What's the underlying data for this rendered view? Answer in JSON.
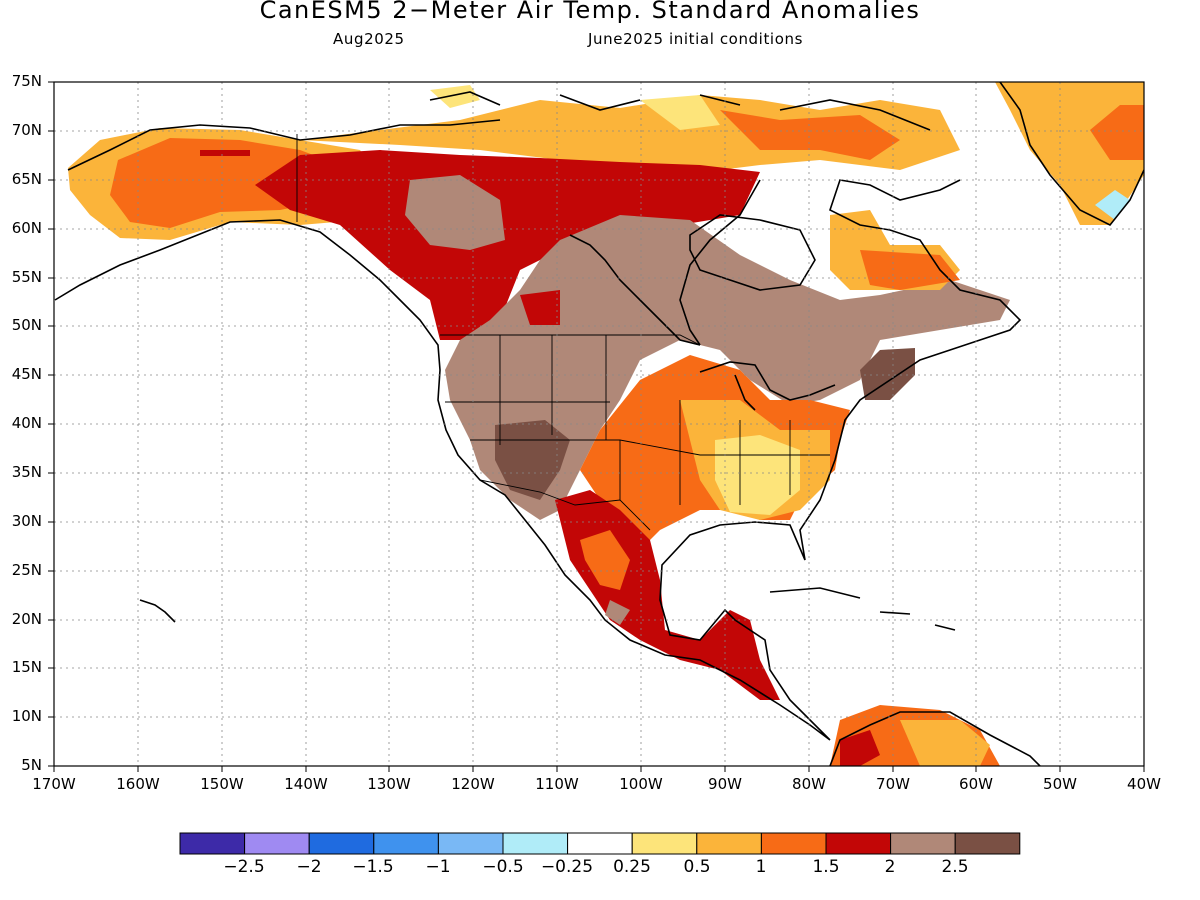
{
  "header": {
    "title": "CanESM5 2−Meter Air Temp. Standard Anomalies",
    "valid_month": "Aug2025",
    "init_conditions": "June2025 initial conditions"
  },
  "axes": {
    "lat_labels": [
      "75N",
      "70N",
      "65N",
      "60N",
      "55N",
      "50N",
      "45N",
      "40N",
      "35N",
      "30N",
      "25N",
      "20N",
      "15N",
      "10N",
      "5N"
    ],
    "lon_labels": [
      "170W",
      "160W",
      "150W",
      "140W",
      "130W",
      "120W",
      "110W",
      "100W",
      "90W",
      "80W",
      "70W",
      "60W",
      "50W",
      "40W"
    ],
    "lat_range": [
      5,
      75
    ],
    "lon_range": [
      -170,
      -40
    ],
    "gridlines": "dotted"
  },
  "legend": {
    "colors": [
      "#3d2aa8",
      "#9f8af2",
      "#1f6be0",
      "#3f92ee",
      "#79b8f5",
      "#b0ecf8",
      "#ffffff",
      "#fde47a",
      "#fbb43a",
      "#f76b16",
      "#c20606",
      "#b08878",
      "#7a5044"
    ],
    "labels": [
      "−2.5",
      "−2",
      "−1.5",
      "−1",
      "−0.5",
      "−0.25",
      "0.25",
      "0.5",
      "1",
      "1.5",
      "2",
      "2.5"
    ]
  },
  "anomaly_regions": [
    {
      "region": "Alaska",
      "level": "1 to 1.5"
    },
    {
      "region": "Western Canada",
      "level": "1.5 to 2"
    },
    {
      "region": "Central Canada / Hudson Bay west",
      "level": "2 to 2.5"
    },
    {
      "region": "Northern US Plains",
      "level": "2 to 2.5"
    },
    {
      "region": "US Southwest / Four Corners",
      "level": "above 2.5"
    },
    {
      "region": "Northeast US / New England",
      "level": "above 2.5"
    },
    {
      "region": "US Southeast",
      "level": "0.25 to 0.5"
    },
    {
      "region": "Mexico",
      "level": "1.5 to 2"
    },
    {
      "region": "Greenland",
      "level": "0.5 to 1"
    },
    {
      "region": "Canadian Arctic Archipelago",
      "level": "0.5 to 1"
    },
    {
      "region": "Northern South America",
      "level": "1 to 1.5"
    }
  ]
}
